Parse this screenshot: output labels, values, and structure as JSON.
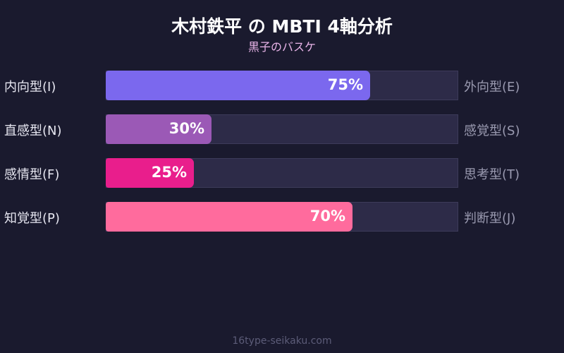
{
  "title": "木村鉄平 の MBTI 4軸分析",
  "subtitle": "黒子のバスケ",
  "footer": "16type-seikaku.com",
  "chart_data": {
    "type": "bar",
    "orientation": "horizontal",
    "title": "木村鉄平 の MBTI 4軸分析",
    "subtitle": "黒子のバスケ",
    "xlim": [
      0,
      100
    ],
    "rows": [
      {
        "left": "内向型(I)",
        "right": "外向型(E)",
        "value": 75,
        "label": "75%",
        "color": "#7b68ee"
      },
      {
        "left": "直感型(N)",
        "right": "感覚型(S)",
        "value": 30,
        "label": "30%",
        "color": "#9b59b6"
      },
      {
        "left": "感情型(F)",
        "right": "思考型(T)",
        "value": 25,
        "label": "25%",
        "color": "#e91e8c"
      },
      {
        "left": "知覚型(P)",
        "right": "判断型(J)",
        "value": 70,
        "label": "70%",
        "color": "#ff6b9d"
      }
    ],
    "track_color": "#2d2b48",
    "background": "#1a1a2e"
  }
}
